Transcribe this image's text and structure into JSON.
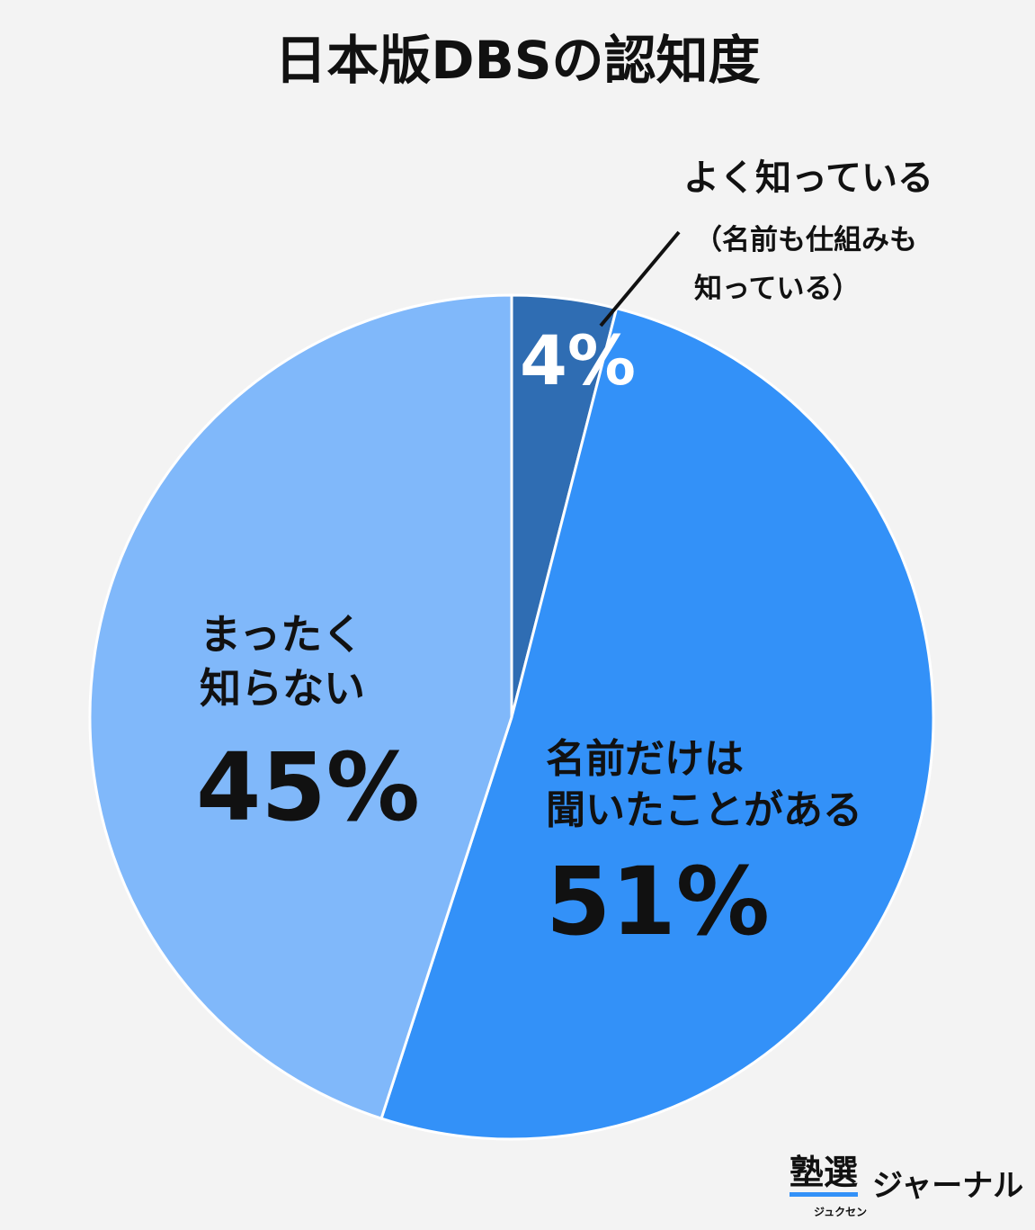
{
  "chart_data": {
    "type": "pie",
    "title": "日本版DBSの認知度",
    "categories": [
      "よく知っている",
      "名前だけは\n聞いたことがある",
      "まったく\n知らない"
    ],
    "values": [
      4,
      51,
      45
    ],
    "value_labels": [
      "4%",
      "51%",
      "45%"
    ],
    "colors": [
      "#2f6db3",
      "#3391f8",
      "#80b8fa"
    ],
    "annotation": "（名前も仕組みも\n知っている）",
    "logo": "塾選",
    "logo_sub": "ジュクセン",
    "source": "ジャーナル"
  }
}
